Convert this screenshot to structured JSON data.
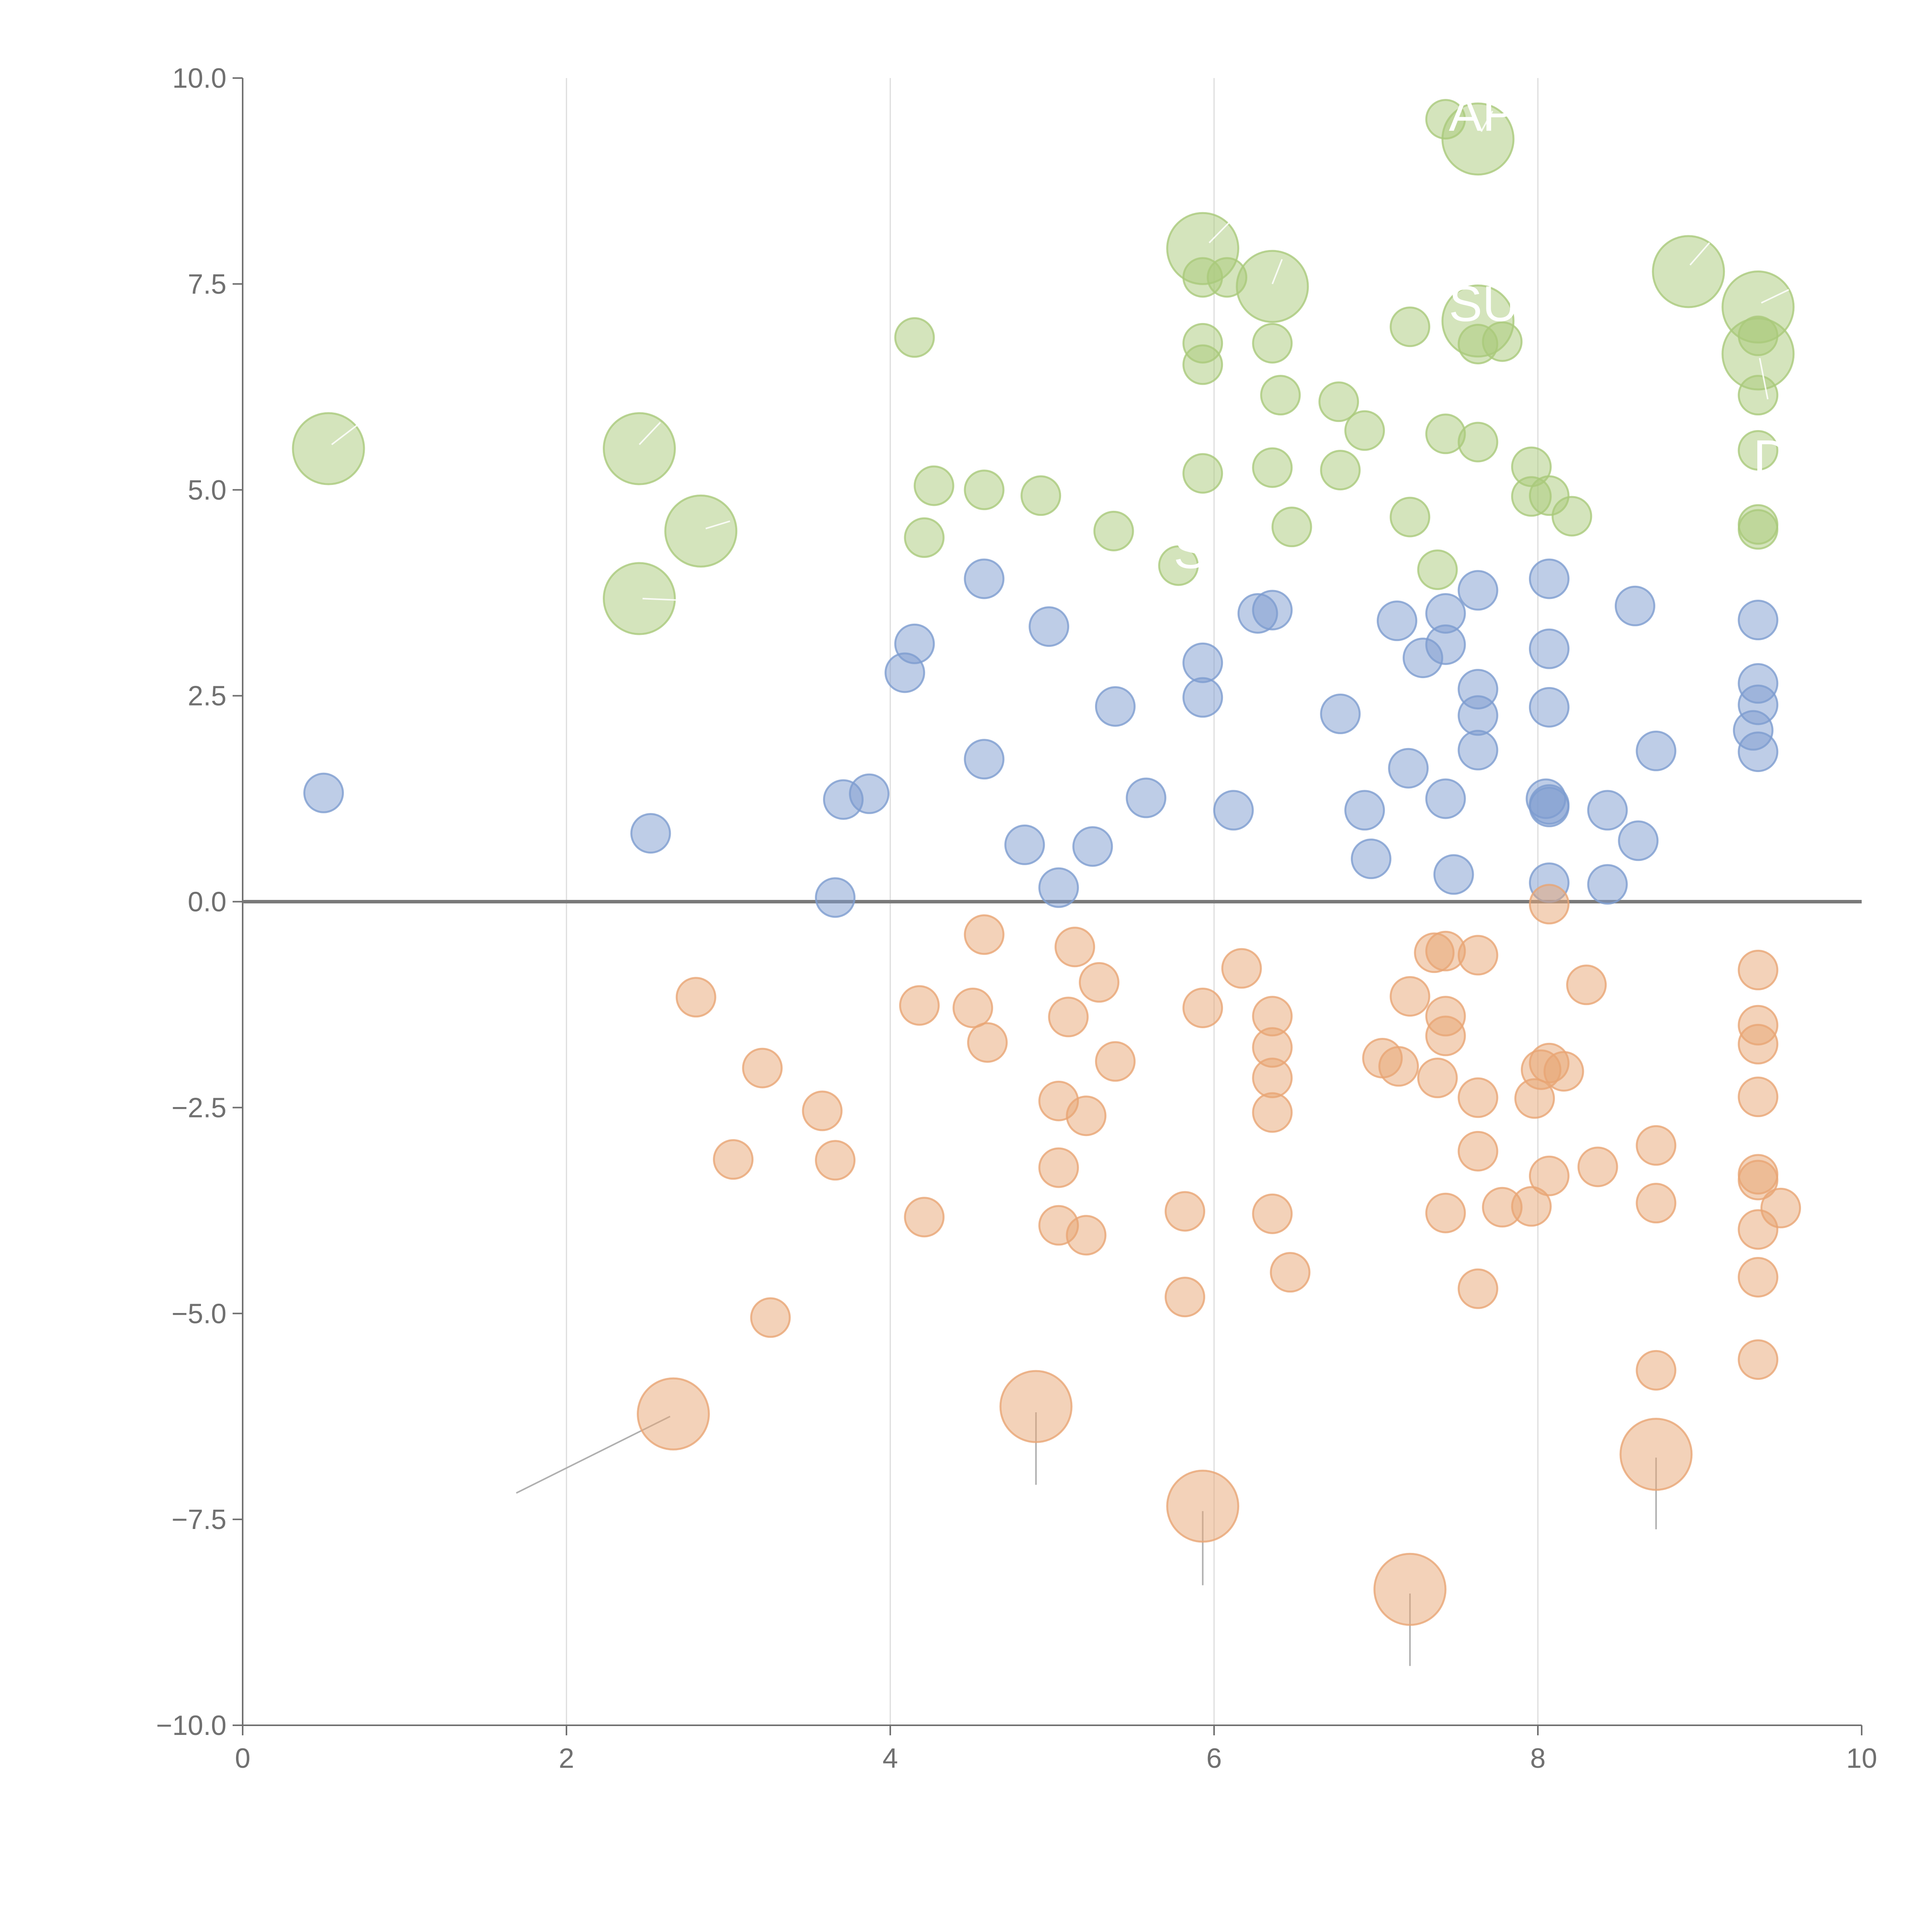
{
  "chart_data": {
    "type": "scatter",
    "title": "",
    "xlabel": "",
    "ylabel": "",
    "xlim": [
      0,
      10
    ],
    "ylim": [
      -10,
      10
    ],
    "grid": "vertical",
    "x_ticks": [
      "0",
      "2",
      "4",
      "6",
      "8",
      "10"
    ],
    "y_ticks": [
      "10.0",
      "7.5",
      "5.0",
      "2.5",
      "0.0",
      "−2.5",
      "−5.0",
      "−7.5",
      "−10.0"
    ],
    "x_tick_values": [
      0,
      2,
      4,
      6,
      8,
      10
    ],
    "y_tick_values": [
      10,
      7.5,
      5,
      2.5,
      0,
      -2.5,
      -5,
      -7.5,
      -10
    ],
    "zero_line": true,
    "colors": {
      "green": "#a9c97a",
      "blue": "#7d9ccf",
      "orange": "#e8a574",
      "axis": "#707070",
      "grid": "#dcdcdc",
      "leader": "#b0b0b0"
    },
    "series": [
      {
        "name": "green",
        "color": "#a9c97a",
        "points": [
          [
            4.15,
            6.85
          ],
          [
            4.27,
            5.05
          ],
          [
            4.21,
            4.42
          ],
          [
            4.58,
            5.0
          ],
          [
            4.93,
            4.93
          ],
          [
            5.38,
            4.5
          ],
          [
            5.78,
            4.08
          ],
          [
            5.93,
            7.58
          ],
          [
            6.08,
            7.58
          ],
          [
            5.93,
            6.78
          ],
          [
            5.93,
            6.52
          ],
          [
            5.93,
            5.2
          ],
          [
            6.36,
            6.78
          ],
          [
            6.41,
            6.15
          ],
          [
            6.36,
            5.27
          ],
          [
            6.48,
            4.55
          ],
          [
            6.77,
            6.07
          ],
          [
            6.93,
            5.72
          ],
          [
            6.78,
            5.24
          ],
          [
            7.21,
            6.98
          ],
          [
            7.21,
            4.67
          ],
          [
            7.43,
            5.68
          ],
          [
            7.63,
            5.58
          ],
          [
            7.38,
            4.03
          ],
          [
            7.63,
            6.77
          ],
          [
            7.78,
            6.8
          ],
          [
            7.96,
            5.28
          ],
          [
            7.96,
            4.92
          ],
          [
            8.07,
            4.93
          ],
          [
            8.21,
            4.68
          ],
          [
            7.43,
            9.5
          ],
          [
            9.36,
            6.87
          ],
          [
            9.36,
            6.15
          ],
          [
            9.36,
            5.48
          ],
          [
            9.36,
            4.58
          ],
          [
            9.36,
            4.52
          ]
        ],
        "large": [
          [
            0.53,
            5.5
          ],
          [
            2.45,
            5.5
          ],
          [
            2.83,
            4.5
          ],
          [
            2.45,
            3.68
          ],
          [
            5.93,
            7.93
          ],
          [
            6.36,
            7.47
          ],
          [
            7.63,
            9.26
          ],
          [
            7.63,
            7.05
          ],
          [
            8.93,
            7.65
          ],
          [
            9.36,
            7.22
          ],
          [
            9.36,
            6.65
          ]
        ]
      },
      {
        "name": "blue",
        "color": "#7d9ccf",
        "points": [
          [
            0.5,
            1.32
          ],
          [
            2.52,
            0.83
          ],
          [
            3.66,
            0.05
          ],
          [
            3.71,
            1.24
          ],
          [
            3.87,
            1.31
          ],
          [
            4.09,
            2.78
          ],
          [
            4.15,
            3.13
          ],
          [
            4.58,
            3.92
          ],
          [
            4.58,
            1.73
          ],
          [
            4.83,
            0.69
          ],
          [
            4.98,
            3.34
          ],
          [
            5.04,
            0.17
          ],
          [
            5.25,
            0.67
          ],
          [
            5.39,
            2.37
          ],
          [
            5.58,
            1.26
          ],
          [
            5.93,
            2.9
          ],
          [
            5.93,
            2.48
          ],
          [
            6.12,
            1.11
          ],
          [
            6.27,
            3.5
          ],
          [
            6.36,
            3.54
          ],
          [
            6.78,
            2.28
          ],
          [
            6.93,
            1.11
          ],
          [
            6.97,
            0.52
          ],
          [
            7.13,
            3.41
          ],
          [
            7.2,
            1.62
          ],
          [
            7.29,
            2.96
          ],
          [
            7.43,
            3.5
          ],
          [
            7.43,
            3.12
          ],
          [
            7.43,
            1.25
          ],
          [
            7.48,
            0.33
          ],
          [
            7.63,
            3.78
          ],
          [
            7.63,
            2.58
          ],
          [
            7.63,
            2.26
          ],
          [
            7.63,
            1.84
          ],
          [
            8.07,
            3.92
          ],
          [
            8.07,
            3.07
          ],
          [
            8.07,
            2.36
          ],
          [
            8.05,
            1.25
          ],
          [
            8.07,
            1.18
          ],
          [
            8.07,
            1.15
          ],
          [
            8.07,
            0.23
          ],
          [
            8.43,
            1.11
          ],
          [
            8.43,
            0.21
          ],
          [
            8.6,
            3.59
          ],
          [
            8.62,
            0.74
          ],
          [
            8.73,
            1.83
          ],
          [
            9.36,
            3.42
          ],
          [
            9.36,
            2.65
          ],
          [
            9.36,
            2.39
          ],
          [
            9.33,
            2.08
          ],
          [
            9.36,
            1.82
          ]
        ],
        "large": []
      },
      {
        "name": "orange",
        "color": "#e8a574",
        "points": [
          [
            2.8,
            -1.16
          ],
          [
            3.03,
            -3.13
          ],
          [
            3.21,
            -2.02
          ],
          [
            3.26,
            -5.05
          ],
          [
            3.58,
            -2.54
          ],
          [
            3.66,
            -3.14
          ],
          [
            4.18,
            -1.26
          ],
          [
            4.21,
            -3.83
          ],
          [
            4.58,
            -0.4
          ],
          [
            4.51,
            -1.29
          ],
          [
            4.6,
            -1.71
          ],
          [
            5.04,
            -2.42
          ],
          [
            5.04,
            -3.23
          ],
          [
            5.04,
            -3.93
          ],
          [
            5.14,
            -0.55
          ],
          [
            5.1,
            -1.4
          ],
          [
            5.21,
            -2.6
          ],
          [
            5.21,
            -4.05
          ],
          [
            5.29,
            -0.98
          ],
          [
            5.39,
            -1.94
          ],
          [
            5.82,
            -3.76
          ],
          [
            5.82,
            -4.8
          ],
          [
            5.93,
            -1.29
          ],
          [
            6.17,
            -0.81
          ],
          [
            6.36,
            -1.39
          ],
          [
            6.36,
            -1.77
          ],
          [
            6.36,
            -2.14
          ],
          [
            6.36,
            -2.56
          ],
          [
            6.36,
            -3.79
          ],
          [
            6.47,
            -4.5
          ],
          [
            7.04,
            -1.9
          ],
          [
            7.14,
            -2.0
          ],
          [
            7.21,
            -1.15
          ],
          [
            7.36,
            -0.62
          ],
          [
            7.43,
            -0.6
          ],
          [
            7.38,
            -2.14
          ],
          [
            7.43,
            -1.39
          ],
          [
            7.43,
            -1.63
          ],
          [
            7.43,
            -3.78
          ],
          [
            7.63,
            -0.65
          ],
          [
            7.63,
            -2.38
          ],
          [
            7.63,
            -3.03
          ],
          [
            7.63,
            -4.7
          ],
          [
            7.78,
            -3.71
          ],
          [
            7.96,
            -3.7
          ],
          [
            7.98,
            -2.39
          ],
          [
            8.02,
            -2.04
          ],
          [
            8.07,
            -1.96
          ],
          [
            8.07,
            -3.33
          ],
          [
            8.07,
            -0.03
          ],
          [
            8.16,
            -2.06
          ],
          [
            8.37,
            -3.22
          ],
          [
            8.3,
            -1.01
          ],
          [
            8.73,
            -2.96
          ],
          [
            8.73,
            -3.66
          ],
          [
            8.73,
            -5.69
          ],
          [
            9.36,
            -0.83
          ],
          [
            9.36,
            -1.5
          ],
          [
            9.36,
            -1.73
          ],
          [
            9.36,
            -2.37
          ],
          [
            9.36,
            -3.31
          ],
          [
            9.36,
            -3.38
          ],
          [
            9.36,
            -3.98
          ],
          [
            9.36,
            -4.56
          ],
          [
            9.36,
            -5.56
          ],
          [
            9.5,
            -3.72
          ]
        ],
        "large": [
          [
            2.66,
            -6.22
          ],
          [
            4.9,
            -6.13
          ],
          [
            5.93,
            -7.34
          ],
          [
            7.21,
            -8.35
          ],
          [
            8.73,
            -6.71
          ]
        ]
      }
    ],
    "leaders": [
      {
        "series": "orange",
        "from": [
          2.64,
          -6.25
        ],
        "to": [
          1.69,
          -7.18
        ]
      },
      {
        "series": "orange",
        "from": [
          4.9,
          -6.2
        ],
        "to": [
          4.9,
          -7.08
        ]
      },
      {
        "series": "orange",
        "from": [
          5.93,
          -7.4
        ],
        "to": [
          5.93,
          -8.3
        ]
      },
      {
        "series": "orange",
        "from": [
          7.21,
          -8.4
        ],
        "to": [
          7.21,
          -9.28
        ]
      },
      {
        "series": "orange",
        "from": [
          8.73,
          -6.75
        ],
        "to": [
          8.73,
          -7.62
        ]
      },
      {
        "series": "white",
        "from": [
          0.55,
          5.55
        ],
        "to": [
          0.71,
          5.79
        ]
      },
      {
        "series": "white",
        "from": [
          2.45,
          5.55
        ],
        "to": [
          2.58,
          5.82
        ]
      },
      {
        "series": "white",
        "from": [
          2.86,
          4.53
        ],
        "to": [
          3.01,
          4.62
        ]
      },
      {
        "series": "white",
        "from": [
          2.47,
          3.68
        ],
        "to": [
          2.71,
          3.66
        ]
      },
      {
        "series": "white",
        "from": [
          5.97,
          8.0
        ],
        "to": [
          6.12,
          8.3
        ]
      },
      {
        "series": "white",
        "from": [
          6.36,
          7.5
        ],
        "to": [
          6.42,
          7.8
        ]
      },
      {
        "series": "white",
        "from": [
          7.65,
          9.35
        ],
        "to": [
          7.72,
          9.6
        ]
      },
      {
        "series": "white",
        "from": [
          8.94,
          7.73
        ],
        "to": [
          9.06,
          8.0
        ]
      },
      {
        "series": "white",
        "from": [
          9.38,
          7.27
        ],
        "to": [
          9.55,
          7.43
        ]
      },
      {
        "series": "white",
        "from": [
          9.37,
          6.6
        ],
        "to": [
          9.42,
          6.1
        ]
      }
    ],
    "annotations": [
      {
        "text": "AP",
        "x": 7.45,
        "y": 9.36
      },
      {
        "text": "SU",
        "x": 7.45,
        "y": 7.05
      },
      {
        "text": "D",
        "x": 9.33,
        "y": 5.18
      },
      {
        "text": "S",
        "x": 5.75,
        "y": 4.05
      }
    ]
  }
}
